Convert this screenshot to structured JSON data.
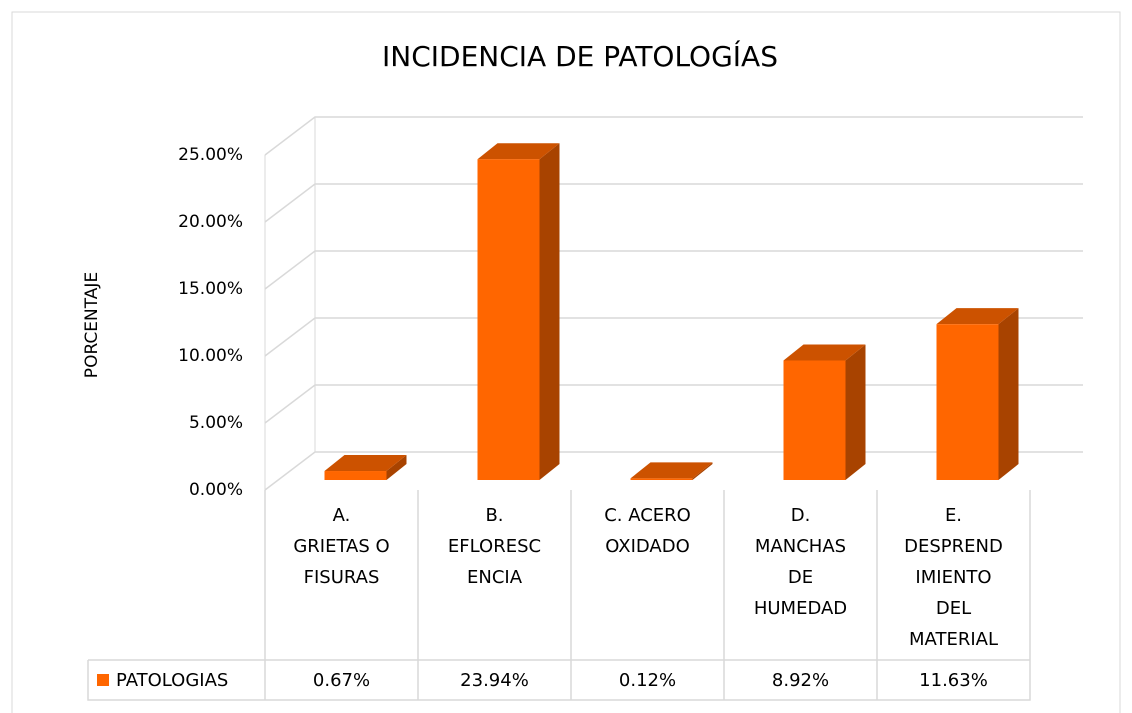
{
  "chart_data": {
    "type": "bar3d",
    "title": "INCIDENCIA DE PATOLOGÍAS",
    "y_label": "PORCENTAJE",
    "categories": [
      "A.\nGRIETAS O\nFISURAS",
      "B.\nEFLORESC\nENCIA",
      "C. ACERO\nOXIDADO",
      "D.\nMANCHAS\nDE\nHUMEDAD",
      "E.\nDESPREND\nIMIENTO\nDEL\nMATERIAL"
    ],
    "series": [
      {
        "name": "PATOLOGIAS",
        "color": "#ff6600",
        "values": [
          0.67,
          23.94,
          0.12,
          8.92,
          11.63
        ],
        "value_labels": [
          "0.67%",
          "23.94%",
          "0.12%",
          "8.92%",
          "11.63%"
        ]
      }
    ],
    "ylim": [
      0,
      25
    ],
    "yticks": [
      {
        "value": 0,
        "label": "0.00%"
      },
      {
        "value": 5,
        "label": "5.00%"
      },
      {
        "value": 10,
        "label": "10.00%"
      },
      {
        "value": 15,
        "label": "15.00%"
      },
      {
        "value": 20,
        "label": "20.00%"
      },
      {
        "value": 25,
        "label": "25.00%"
      }
    ],
    "grid": true,
    "legend": "data-table"
  }
}
